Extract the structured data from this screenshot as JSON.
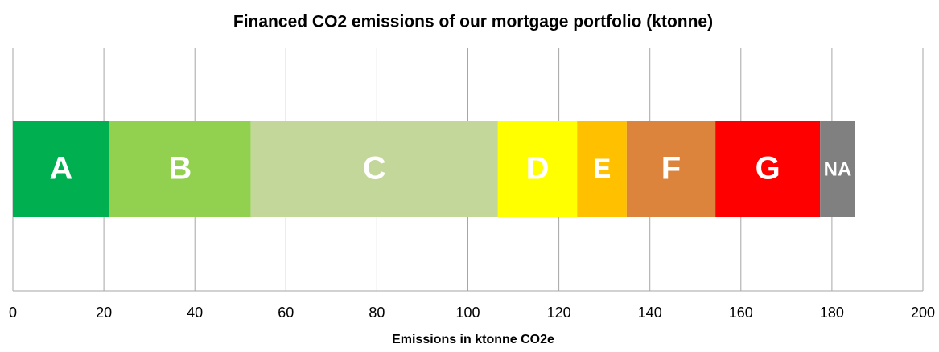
{
  "chart_data": {
    "type": "stacked-bar-horizontal",
    "title": "Financed CO2 emissions of our mortgage portfolio (ktonne)",
    "x_label": "Emissions in ktonne CO2e",
    "categories": [
      null
    ],
    "series": [
      {
        "name": "A",
        "color": "#00b050",
        "values": [
          21.2
        ]
      },
      {
        "name": "B",
        "color": "#92d050",
        "values": [
          31.1
        ]
      },
      {
        "name": "C",
        "color": "#c4d79b",
        "values": [
          54.3
        ]
      },
      {
        "name": "D",
        "color": "#ffff00",
        "values": [
          17.4
        ]
      },
      {
        "name": "E",
        "color": "#ffc000",
        "values": [
          10.9
        ]
      },
      {
        "name": "F",
        "color": "#dc843c",
        "values": [
          19.5
        ]
      },
      {
        "name": "G",
        "color": "#ff0000",
        "values": [
          23.0
        ]
      },
      {
        "name": "NA",
        "color": "#808080",
        "values": [
          7.7
        ]
      }
    ],
    "xlim": [
      0,
      200
    ],
    "xticks": [
      0,
      20,
      40,
      60,
      80,
      100,
      120,
      140,
      160,
      180,
      200
    ],
    "grid": true
  }
}
